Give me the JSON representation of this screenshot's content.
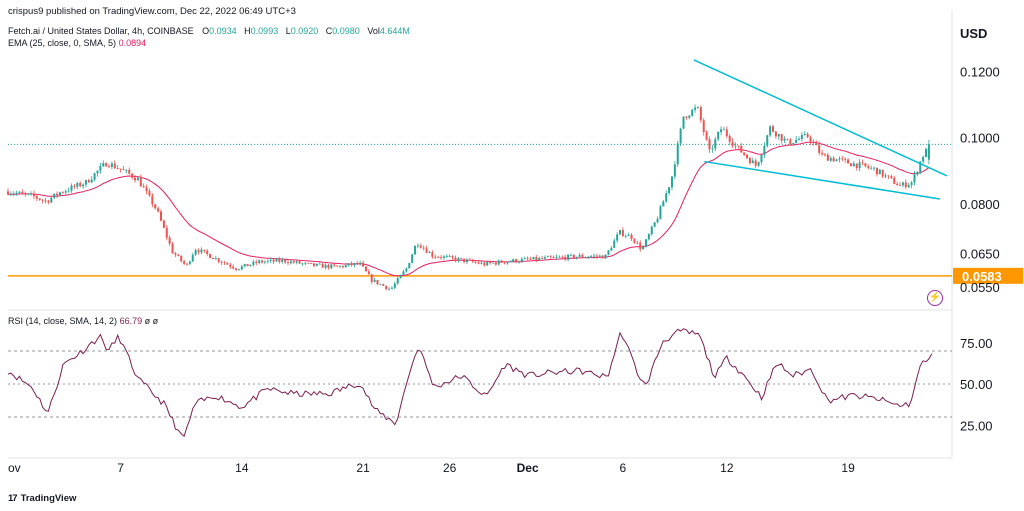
{
  "header": {
    "published": "crispus9 published on TradingView.com, Dec 22, 2022 06:49 UTC+3"
  },
  "legend": {
    "symbol": "Fetch.ai / United States Dollar, 4h, COINBASE",
    "o_label": "O",
    "o_value": "0.0934",
    "h_label": "H",
    "h_value": "0.0993",
    "l_label": "L",
    "l_value": "0.0920",
    "c_label": "C",
    "c_value": "0.0980",
    "vol_label": "Vol",
    "vol_value": "4.644M",
    "ema_label": "EMA (25, close, 0, SMA, 5)",
    "ema_value": "0.0894",
    "rsi_label": "RSI (14, close, SMA, 14, 2)",
    "rsi_value": "66.79",
    "rsi_extra": "ø ø"
  },
  "currency": "USD",
  "colors": {
    "up": "#26a69a",
    "down": "#ef5350",
    "ema": "#e91e63",
    "support": "#ff9800",
    "wedge": "#00bcd4",
    "rsi": "#7b1f52"
  },
  "chart_data": [
    {
      "type": "candlestick",
      "ylim": [
        0.051,
        0.128
      ],
      "yticks": [
        "0.1200",
        "0.1000",
        "0.0800",
        "0.0650",
        "0.0550"
      ],
      "ytick_values": [
        0.12,
        0.1,
        0.08,
        0.065,
        0.055
      ],
      "support_level": 0.0583,
      "support_label": "0.0583",
      "xtick_labels": [
        "ov",
        "7",
        "14",
        "21",
        "26",
        "Dec",
        "6",
        "12",
        "19"
      ],
      "xtick_days": [
        0,
        6.5,
        13.5,
        20.5,
        25.5,
        30,
        35.5,
        41.5,
        48.5
      ],
      "x_range_days": [
        0,
        54.5
      ],
      "anchors": [
        {
          "day": 0,
          "close": 0.0838
        },
        {
          "day": 1.5,
          "close": 0.0822
        },
        {
          "day": 2.2,
          "close": 0.0808
        },
        {
          "day": 3,
          "close": 0.0835
        },
        {
          "day": 4.5,
          "close": 0.0865
        },
        {
          "day": 5.7,
          "close": 0.0925
        },
        {
          "day": 6.5,
          "close": 0.0905
        },
        {
          "day": 7.5,
          "close": 0.0875
        },
        {
          "day": 8.6,
          "close": 0.078
        },
        {
          "day": 9.5,
          "close": 0.0655
        },
        {
          "day": 10.3,
          "close": 0.0612
        },
        {
          "day": 10.8,
          "close": 0.0665
        },
        {
          "day": 12,
          "close": 0.0635
        },
        {
          "day": 13.2,
          "close": 0.0605
        },
        {
          "day": 14.5,
          "close": 0.0625
        },
        {
          "day": 16,
          "close": 0.0628
        },
        {
          "day": 17.5,
          "close": 0.0615
        },
        {
          "day": 19,
          "close": 0.061
        },
        {
          "day": 20.3,
          "close": 0.062
        },
        {
          "day": 21,
          "close": 0.057
        },
        {
          "day": 22.1,
          "close": 0.0542
        },
        {
          "day": 23,
          "close": 0.0605
        },
        {
          "day": 23.6,
          "close": 0.0685
        },
        {
          "day": 24.5,
          "close": 0.0645
        },
        {
          "day": 26,
          "close": 0.0632
        },
        {
          "day": 27.5,
          "close": 0.0618
        },
        {
          "day": 29,
          "close": 0.0628
        },
        {
          "day": 31,
          "close": 0.0635
        },
        {
          "day": 33,
          "close": 0.0642
        },
        {
          "day": 34.5,
          "close": 0.0642
        },
        {
          "day": 35.3,
          "close": 0.0715
        },
        {
          "day": 36,
          "close": 0.07
        },
        {
          "day": 36.6,
          "close": 0.0662
        },
        {
          "day": 37.5,
          "close": 0.076
        },
        {
          "day": 38.3,
          "close": 0.0875
        },
        {
          "day": 39,
          "close": 0.1065
        },
        {
          "day": 39.8,
          "close": 0.109
        },
        {
          "day": 40.5,
          "close": 0.0955
        },
        {
          "day": 41.2,
          "close": 0.103
        },
        {
          "day": 42,
          "close": 0.0975
        },
        {
          "day": 43.2,
          "close": 0.0915
        },
        {
          "day": 44,
          "close": 0.103
        },
        {
          "day": 45,
          "close": 0.0985
        },
        {
          "day": 46.2,
          "close": 0.1005
        },
        {
          "day": 47,
          "close": 0.0945
        },
        {
          "day": 48.5,
          "close": 0.0925
        },
        {
          "day": 50,
          "close": 0.0905
        },
        {
          "day": 51.5,
          "close": 0.0855
        },
        {
          "day": 52.2,
          "close": 0.0865
        },
        {
          "day": 52.8,
          "close": 0.0945
        },
        {
          "day": 53.3,
          "close": 0.098
        }
      ],
      "ema_period": 25,
      "wedge_upper": [
        [
          39.6,
          0.1235
        ],
        [
          54.2,
          0.0885
        ]
      ],
      "wedge_lower": [
        [
          40.2,
          0.0928
        ],
        [
          53.8,
          0.0815
        ]
      ]
    },
    {
      "type": "line",
      "name": "RSI",
      "ylim": [
        10,
        90
      ],
      "yticks": [
        "75.00",
        "50.00",
        "25.00"
      ],
      "ytick_values": [
        75,
        50,
        25
      ],
      "bands": [
        70,
        50,
        30
      ],
      "anchors": [
        {
          "day": 0,
          "value": 58
        },
        {
          "day": 1.4,
          "value": 48
        },
        {
          "day": 2.3,
          "value": 32
        },
        {
          "day": 3.2,
          "value": 62
        },
        {
          "day": 4.3,
          "value": 70
        },
        {
          "day": 5.3,
          "value": 79
        },
        {
          "day": 5.8,
          "value": 70
        },
        {
          "day": 6.4,
          "value": 79
        },
        {
          "day": 7.5,
          "value": 53
        },
        {
          "day": 9,
          "value": 38
        },
        {
          "day": 10.1,
          "value": 16
        },
        {
          "day": 10.8,
          "value": 38
        },
        {
          "day": 12,
          "value": 43
        },
        {
          "day": 13.5,
          "value": 36
        },
        {
          "day": 15,
          "value": 47
        },
        {
          "day": 16.5,
          "value": 44
        },
        {
          "day": 18.5,
          "value": 44
        },
        {
          "day": 20.3,
          "value": 51
        },
        {
          "day": 21.2,
          "value": 34
        },
        {
          "day": 22.4,
          "value": 26
        },
        {
          "day": 23.2,
          "value": 58
        },
        {
          "day": 23.7,
          "value": 73
        },
        {
          "day": 24.6,
          "value": 48
        },
        {
          "day": 26.2,
          "value": 55
        },
        {
          "day": 27.6,
          "value": 42
        },
        {
          "day": 28.7,
          "value": 62
        },
        {
          "day": 30,
          "value": 55
        },
        {
          "day": 31.5,
          "value": 57
        },
        {
          "day": 33,
          "value": 58
        },
        {
          "day": 34.6,
          "value": 54
        },
        {
          "day": 35.4,
          "value": 82
        },
        {
          "day": 36.3,
          "value": 58
        },
        {
          "day": 36.8,
          "value": 48
        },
        {
          "day": 37.8,
          "value": 76
        },
        {
          "day": 38.8,
          "value": 82
        },
        {
          "day": 39.9,
          "value": 80
        },
        {
          "day": 40.8,
          "value": 54
        },
        {
          "day": 41.5,
          "value": 66
        },
        {
          "day": 42.5,
          "value": 55
        },
        {
          "day": 43.5,
          "value": 42
        },
        {
          "day": 44.4,
          "value": 63
        },
        {
          "day": 45.3,
          "value": 55
        },
        {
          "day": 46.4,
          "value": 59
        },
        {
          "day": 47.3,
          "value": 40
        },
        {
          "day": 48.8,
          "value": 43
        },
        {
          "day": 50.2,
          "value": 41
        },
        {
          "day": 51.4,
          "value": 37
        },
        {
          "day": 52.1,
          "value": 38
        },
        {
          "day": 52.7,
          "value": 62
        },
        {
          "day": 53.4,
          "value": 67
        }
      ]
    }
  ],
  "branding": {
    "tv_mark": "17",
    "tv_name": "TradingView"
  }
}
